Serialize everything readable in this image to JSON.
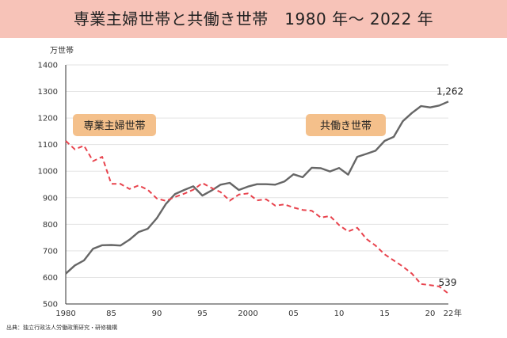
{
  "header": {
    "title": "専業主婦世帯と共働き世帯　1980 年～ 2022 年"
  },
  "source": "出典：独立行政法人労働政策研究・研修機構",
  "colors": {
    "banner_bg": "#f7c3b8",
    "label_bg": "#f4c08b",
    "dual": "#666666",
    "housewife": "#e8434d"
  },
  "chart_data": {
    "type": "line",
    "ylabel": "万世帯",
    "xunit": "年",
    "ylim": [
      500,
      1400
    ],
    "yticks": [
      500,
      600,
      700,
      800,
      900,
      1000,
      1100,
      1200,
      1300,
      1400
    ],
    "xlim": [
      1980,
      2022
    ],
    "xticks": [
      {
        "value": 1980,
        "label": "1980"
      },
      {
        "value": 1985,
        "label": "85"
      },
      {
        "value": 1990,
        "label": "90"
      },
      {
        "value": 1995,
        "label": "95"
      },
      {
        "value": 2000,
        "label": "2000"
      },
      {
        "value": 2005,
        "label": "05"
      },
      {
        "value": 2010,
        "label": "10"
      },
      {
        "value": 2015,
        "label": "15"
      },
      {
        "value": 2020,
        "label": "20"
      },
      {
        "value": 2022,
        "label": "22"
      }
    ],
    "grid": true,
    "x": [
      1980,
      1981,
      1982,
      1983,
      1984,
      1985,
      1986,
      1987,
      1988,
      1989,
      1990,
      1991,
      1992,
      1993,
      1994,
      1995,
      1996,
      1997,
      1998,
      1999,
      2000,
      2001,
      2002,
      2003,
      2004,
      2005,
      2006,
      2007,
      2008,
      2009,
      2010,
      2011,
      2012,
      2013,
      2014,
      2015,
      2016,
      2017,
      2018,
      2019,
      2020,
      2021,
      2022
    ],
    "series": [
      {
        "name": "共働き世帯",
        "style": "solid",
        "color": "#666666",
        "end_label": "1,262",
        "values": [
          614,
          645,
          664,
          708,
          721,
          722,
          720,
          742,
          771,
          783,
          823,
          877,
          914,
          929,
          943,
          908,
          927,
          949,
          956,
          929,
          942,
          951,
          951,
          949,
          961,
          988,
          977,
          1013,
          1011,
          999,
          1012,
          987,
          1054,
          1065,
          1077,
          1114,
          1129,
          1188,
          1219,
          1245,
          1240,
          1247,
          1262
        ]
      },
      {
        "name": "専業主婦世帯",
        "style": "dashed",
        "color": "#e8434d",
        "end_label": "539",
        "values": [
          1114,
          1082,
          1096,
          1038,
          1054,
          952,
          952,
          933,
          946,
          930,
          897,
          888,
          903,
          915,
          930,
          955,
          937,
          921,
          889,
          912,
          916,
          890,
          894,
          870,
          875,
          863,
          854,
          851,
          825,
          831,
          797,
          773,
          787,
          745,
          720,
          687,
          664,
          641,
          614,
          575,
          571,
          566,
          539
        ]
      }
    ]
  }
}
